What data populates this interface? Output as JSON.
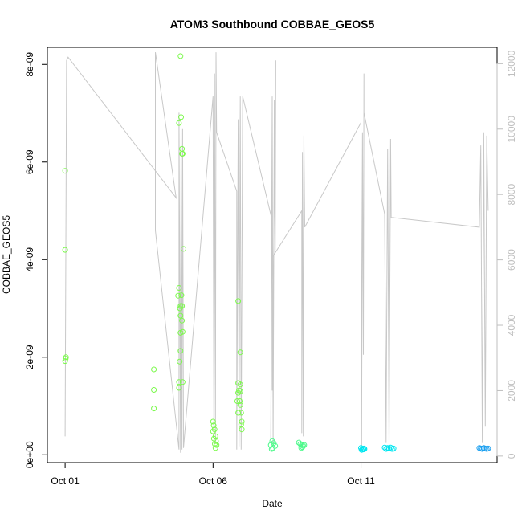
{
  "chart_data": {
    "type": "scatter",
    "title": "ATOM3 Southbound COBBAE_GEOS5",
    "xlabel": "Date",
    "ylabel": "COBBAE_GEOS5",
    "x_unit": "days since Oct 01",
    "xlim": [
      -0.6,
      14.6
    ],
    "ylim": [
      -1.6e-10,
      8.35e-09
    ],
    "y2lim": [
      -200,
      12500
    ],
    "x_ticks": [
      {
        "value": 0,
        "label": "Oct 01"
      },
      {
        "value": 5,
        "label": "Oct 06"
      },
      {
        "value": 10,
        "label": "Oct 11"
      }
    ],
    "y_ticks": [
      {
        "value": 0,
        "label": "0e+00"
      },
      {
        "value": 2e-09,
        "label": "2e-09"
      },
      {
        "value": 4e-09,
        "label": "4e-09"
      },
      {
        "value": 6e-09,
        "label": "6e-09"
      },
      {
        "value": 8e-09,
        "label": "8e-09"
      }
    ],
    "y2_ticks": [
      0,
      2000,
      4000,
      6000,
      8000,
      10000,
      12000
    ],
    "series": [
      {
        "color": "#7cf94d",
        "points": [
          [
            0.0,
            5.82e-09
          ],
          [
            0.0,
            4.2e-09
          ],
          [
            0.03,
            2e-09
          ],
          [
            0.0,
            1.92e-09
          ],
          [
            0.02,
            1.97e-09
          ],
          [
            3.0,
            1.75e-09
          ],
          [
            3.0,
            1.33e-09
          ],
          [
            3.0,
            9.5e-10
          ],
          [
            3.9,
            8.17e-09
          ],
          [
            3.85,
            6.8e-09
          ],
          [
            3.92,
            6.92e-09
          ],
          [
            3.95,
            6.27e-09
          ],
          [
            3.97,
            6.17e-09
          ],
          [
            3.95,
            6.17e-09
          ],
          [
            4.0,
            4.22e-09
          ],
          [
            3.85,
            3.42e-09
          ],
          [
            3.82,
            3.26e-09
          ],
          [
            3.93,
            3.27e-09
          ],
          [
            3.9,
            3.05e-09
          ],
          [
            3.95,
            3.05e-09
          ],
          [
            3.88,
            3e-09
          ],
          [
            3.9,
            2.85e-09
          ],
          [
            3.95,
            2.75e-09
          ],
          [
            3.9,
            2.5e-09
          ],
          [
            3.97,
            2.52e-09
          ],
          [
            3.9,
            2.13e-09
          ],
          [
            3.87,
            1.91e-09
          ],
          [
            3.85,
            1.49e-09
          ],
          [
            3.97,
            1.49e-09
          ],
          [
            3.85,
            1.37e-09
          ],
          [
            5.0,
            6.8e-10
          ],
          [
            5.02,
            6e-10
          ],
          [
            5.05,
            5.2e-10
          ],
          [
            5.0,
            4.8e-10
          ],
          [
            5.08,
            3.8e-10
          ],
          [
            5.03,
            3.3e-10
          ],
          [
            5.1,
            2.8e-10
          ],
          [
            5.06,
            2.2e-10
          ],
          [
            5.12,
            2e-10
          ],
          [
            5.08,
            1.4e-10
          ],
          [
            5.85,
            3.15e-09
          ],
          [
            5.92,
            2.1e-09
          ],
          [
            5.85,
            1.47e-09
          ],
          [
            5.92,
            1.44e-09
          ],
          [
            5.88,
            1.32e-09
          ],
          [
            5.85,
            1.27e-09
          ],
          [
            5.92,
            1.3e-09
          ],
          [
            5.82,
            1.1e-09
          ],
          [
            5.9,
            1.1e-09
          ],
          [
            5.92,
            1.02e-09
          ],
          [
            5.85,
            8.6e-10
          ],
          [
            5.95,
            8.6e-10
          ],
          [
            5.97,
            6.8e-10
          ],
          [
            5.95,
            6.2e-10
          ],
          [
            5.97,
            5.2e-10
          ]
        ]
      },
      {
        "color": "#4cf98a",
        "points": [
          [
            7.0,
            2.8e-10
          ],
          [
            7.05,
            2.4e-10
          ],
          [
            6.95,
            2e-10
          ],
          [
            7.1,
            1.8e-10
          ],
          [
            7.02,
            1.4e-10
          ],
          [
            6.98,
            1.2e-10
          ],
          [
            7.9,
            2.5e-10
          ],
          [
            7.95,
            2.2e-10
          ],
          [
            8.0,
            2e-10
          ],
          [
            8.05,
            1.8e-10
          ],
          [
            8.02,
            1.6e-10
          ],
          [
            7.98,
            1.4e-10
          ],
          [
            8.08,
            2e-10
          ]
        ]
      },
      {
        "color": "#00e6f0",
        "points": [
          [
            10.0,
            1.4e-10
          ],
          [
            10.05,
            1.2e-10
          ],
          [
            10.1,
            1.3e-10
          ],
          [
            10.02,
            1e-10
          ],
          [
            10.08,
            1.1e-10
          ],
          [
            10.12,
            1.2e-10
          ],
          [
            10.8,
            1.5e-10
          ],
          [
            10.9,
            1.4e-10
          ],
          [
            10.95,
            1.3e-10
          ],
          [
            11.0,
            1.5e-10
          ],
          [
            11.05,
            1.2e-10
          ],
          [
            11.1,
            1.3e-10
          ],
          [
            10.85,
            1.2e-10
          ]
        ]
      },
      {
        "color": "#1ca0f0",
        "points": [
          [
            14.0,
            1.4e-10
          ],
          [
            14.05,
            1.3e-10
          ],
          [
            14.1,
            1.2e-10
          ],
          [
            14.15,
            1.4e-10
          ],
          [
            14.2,
            1.3e-10
          ],
          [
            14.25,
            1.2e-10
          ],
          [
            14.3,
            1.3e-10
          ]
        ]
      }
    ],
    "line_y2": {
      "color": "#c8c8c8",
      "points": [
        [
          0.0,
          600
        ],
        [
          0.05,
          12100
        ],
        [
          0.1,
          12200
        ],
        [
          3.75,
          7900
        ],
        [
          3.05,
          12350
        ],
        [
          3.05,
          6900
        ],
        [
          3.85,
          200
        ],
        [
          3.85,
          10500
        ],
        [
          3.9,
          100
        ],
        [
          3.92,
          10300
        ],
        [
          3.95,
          200
        ],
        [
          3.97,
          10000
        ],
        [
          4.0,
          250
        ],
        [
          5.0,
          11000
        ],
        [
          5.03,
          300
        ],
        [
          5.05,
          11700
        ],
        [
          5.08,
          400
        ],
        [
          5.1,
          12350
        ],
        [
          5.12,
          9900
        ],
        [
          5.8,
          8100
        ],
        [
          5.8,
          200
        ],
        [
          5.85,
          10300
        ],
        [
          5.88,
          300
        ],
        [
          5.92,
          11000
        ],
        [
          5.95,
          200
        ],
        [
          6.0,
          11000
        ],
        [
          7.0,
          7200
        ],
        [
          6.95,
          500
        ],
        [
          7.0,
          11000
        ],
        [
          7.03,
          400
        ],
        [
          7.07,
          10900
        ],
        [
          7.1,
          6300
        ],
        [
          7.12,
          12100
        ],
        [
          7.0,
          2000
        ],
        [
          7.02,
          6100
        ],
        [
          8.0,
          7500
        ],
        [
          8.0,
          700
        ],
        [
          8.02,
          9300
        ],
        [
          8.05,
          600
        ],
        [
          8.07,
          9800
        ],
        [
          8.1,
          7000
        ],
        [
          10.0,
          10200
        ],
        [
          10.02,
          300
        ],
        [
          10.05,
          9900
        ],
        [
          10.08,
          3100
        ],
        [
          10.1,
          11700
        ],
        [
          10.1,
          10500
        ],
        [
          10.8,
          7400
        ],
        [
          10.85,
          400
        ],
        [
          10.9,
          9400
        ],
        [
          10.95,
          300
        ],
        [
          11.0,
          9700
        ],
        [
          11.02,
          7300
        ],
        [
          14.0,
          7000
        ],
        [
          14.05,
          9500
        ],
        [
          14.1,
          400
        ],
        [
          14.15,
          9900
        ],
        [
          14.2,
          900
        ],
        [
          14.25,
          9800
        ],
        [
          14.3,
          7500
        ]
      ]
    }
  }
}
